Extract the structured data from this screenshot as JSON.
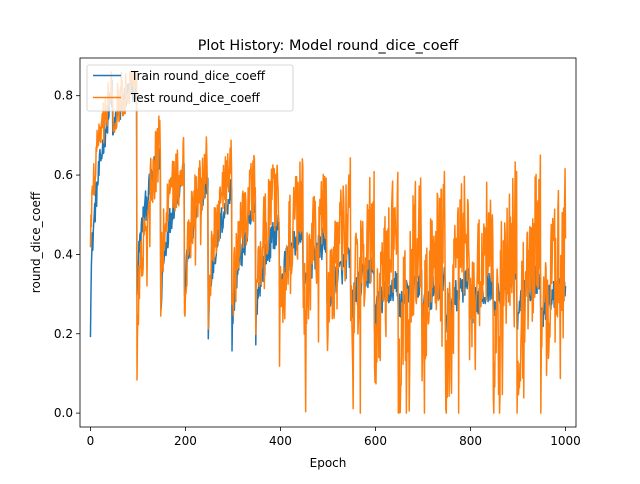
{
  "chart_data": {
    "type": "line",
    "title": "Plot History: Model round_dice_coeff",
    "xlabel": "Epoch",
    "ylabel": "round_dice_coeff",
    "xlim": [
      -22,
      1022
    ],
    "ylim": [
      -0.035,
      0.895
    ],
    "xticks": [
      0,
      200,
      400,
      600,
      800,
      1000
    ],
    "yticks": [
      0.0,
      0.2,
      0.4,
      0.6,
      0.8
    ],
    "grid": false,
    "legend_position": "top-left",
    "series": [
      {
        "name": "Train round_dice_coeff",
        "color": "#1f77b4",
        "segments": [
          {
            "x0": 0,
            "x1": 47,
            "y_start": 0.23,
            "y_end": 0.81,
            "noise": 0.04
          },
          {
            "x0": 47,
            "x1": 98,
            "y_start": 0.68,
            "y_end": 0.83,
            "noise": 0.04
          },
          {
            "x0": 98,
            "x1": 148,
            "y_start": 0.28,
            "y_end": 0.66,
            "noise": 0.04
          },
          {
            "x0": 148,
            "x1": 198,
            "y_start": 0.23,
            "y_end": 0.62,
            "noise": 0.04
          },
          {
            "x0": 198,
            "x1": 248,
            "y_start": 0.26,
            "y_end": 0.59,
            "noise": 0.04
          },
          {
            "x0": 248,
            "x1": 298,
            "y_start": 0.19,
            "y_end": 0.57,
            "noise": 0.04
          },
          {
            "x0": 298,
            "x1": 348,
            "y_start": 0.17,
            "y_end": 0.52,
            "noise": 0.04
          },
          {
            "x0": 348,
            "x1": 398,
            "y_start": 0.21,
            "y_end": 0.48,
            "noise": 0.04
          },
          {
            "x0": 398,
            "x1": 448,
            "y_start": 0.28,
            "y_end": 0.46,
            "noise": 0.04
          },
          {
            "x0": 448,
            "x1": 498,
            "y_start": 0.27,
            "y_end": 0.44,
            "noise": 0.04
          },
          {
            "x0": 498,
            "x1": 548,
            "y_start": 0.25,
            "y_end": 0.39,
            "noise": 0.04
          },
          {
            "x0": 548,
            "x1": 598,
            "y_start": 0.24,
            "y_end": 0.37,
            "noise": 0.04
          },
          {
            "x0": 598,
            "x1": 648,
            "y_start": 0.22,
            "y_end": 0.33,
            "noise": 0.04
          },
          {
            "x0": 648,
            "x1": 698,
            "y_start": 0.24,
            "y_end": 0.33,
            "noise": 0.04
          },
          {
            "x0": 698,
            "x1": 748,
            "y_start": 0.25,
            "y_end": 0.33,
            "noise": 0.04
          },
          {
            "x0": 748,
            "x1": 798,
            "y_start": 0.22,
            "y_end": 0.33,
            "noise": 0.04
          },
          {
            "x0": 798,
            "x1": 848,
            "y_start": 0.22,
            "y_end": 0.33,
            "noise": 0.04
          },
          {
            "x0": 848,
            "x1": 898,
            "y_start": 0.24,
            "y_end": 0.37,
            "noise": 0.04
          },
          {
            "x0": 898,
            "x1": 948,
            "y_start": 0.22,
            "y_end": 0.35,
            "noise": 0.04
          },
          {
            "x0": 948,
            "x1": 1000,
            "y_start": 0.22,
            "y_end": 0.33,
            "noise": 0.04
          }
        ]
      },
      {
        "name": "Test round_dice_coeff",
        "color": "#ff7f0e",
        "segments": [
          {
            "x0": 0,
            "x1": 47,
            "y_start": 0.43,
            "y_end": 0.82,
            "noise": 0.06
          },
          {
            "x0": 47,
            "x1": 98,
            "y_start": 0.72,
            "y_end": 0.85,
            "noise": 0.06
          },
          {
            "x0": 98,
            "x1": 148,
            "y_start": 0.13,
            "y_end": 0.69,
            "noise": 0.08
          },
          {
            "x0": 148,
            "x1": 198,
            "y_start": 0.3,
            "y_end": 0.65,
            "noise": 0.08
          },
          {
            "x0": 198,
            "x1": 248,
            "y_start": 0.28,
            "y_end": 0.63,
            "noise": 0.08
          },
          {
            "x0": 248,
            "x1": 298,
            "y_start": 0.22,
            "y_end": 0.63,
            "noise": 0.08
          },
          {
            "x0": 298,
            "x1": 348,
            "y_start": 0.2,
            "y_end": 0.59,
            "noise": 0.09
          },
          {
            "x0": 348,
            "x1": 398,
            "y_start": 0.24,
            "y_end": 0.58,
            "noise": 0.1
          },
          {
            "x0": 398,
            "x1": 448,
            "y_start": 0.18,
            "y_end": 0.55,
            "noise": 0.12
          },
          {
            "x0": 448,
            "x1": 498,
            "y_start": 0.17,
            "y_end": 0.53,
            "noise": 0.13
          },
          {
            "x0": 498,
            "x1": 548,
            "y_start": 0.15,
            "y_end": 0.51,
            "noise": 0.14
          },
          {
            "x0": 548,
            "x1": 598,
            "y_start": 0.13,
            "y_end": 0.5,
            "noise": 0.15
          },
          {
            "x0": 598,
            "x1": 648,
            "y_start": 0.04,
            "y_end": 0.48,
            "noise": 0.16
          },
          {
            "x0": 648,
            "x1": 698,
            "y_start": 0.01,
            "y_end": 0.48,
            "noise": 0.17
          },
          {
            "x0": 698,
            "x1": 748,
            "y_start": 0.1,
            "y_end": 0.48,
            "noise": 0.16
          },
          {
            "x0": 748,
            "x1": 798,
            "y_start": 0.01,
            "y_end": 0.49,
            "noise": 0.17
          },
          {
            "x0": 798,
            "x1": 848,
            "y_start": 0.1,
            "y_end": 0.5,
            "noise": 0.16
          },
          {
            "x0": 848,
            "x1": 898,
            "y_start": 0.03,
            "y_end": 0.5,
            "noise": 0.17
          },
          {
            "x0": 898,
            "x1": 948,
            "y_start": 0.0,
            "y_end": 0.49,
            "noise": 0.18
          },
          {
            "x0": 948,
            "x1": 1000,
            "y_start": 0.01,
            "y_end": 0.45,
            "noise": 0.18
          }
        ]
      }
    ]
  }
}
